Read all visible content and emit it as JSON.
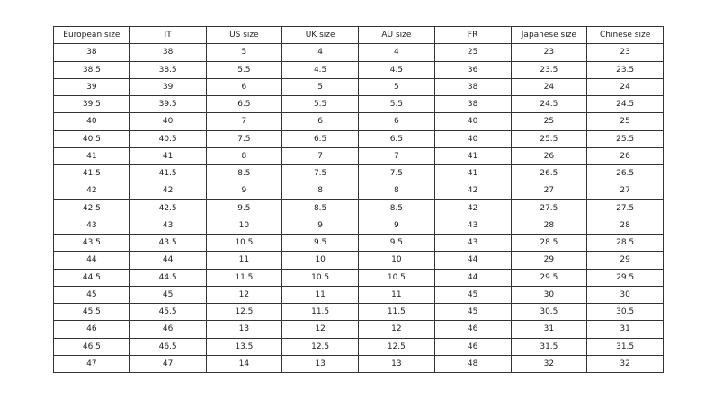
{
  "table": {
    "header": [
      "European size",
      "IT",
      "US size",
      "UK size",
      "AU size",
      "FR",
      "Japanese size",
      "Chinese size"
    ],
    "rows": [
      [
        "38",
        "38",
        "5",
        "4",
        "4",
        "25",
        "23",
        "23"
      ],
      [
        "38.5",
        "38.5",
        "5.5",
        "4.5",
        "4.5",
        "36",
        "23.5",
        "23.5"
      ],
      [
        "39",
        "39",
        "6",
        "5",
        "5",
        "38",
        "24",
        "24"
      ],
      [
        "39.5",
        "39.5",
        "6.5",
        "5.5",
        "5.5",
        "38",
        "24.5",
        "24.5"
      ],
      [
        "40",
        "40",
        "7",
        "6",
        "6",
        "40",
        "25",
        "25"
      ],
      [
        "40.5",
        "40.5",
        "7.5",
        "6.5",
        "6.5",
        "40",
        "25.5",
        "25.5"
      ],
      [
        "41",
        "41",
        "8",
        "7",
        "7",
        "41",
        "26",
        "26"
      ],
      [
        "41.5",
        "41.5",
        "8.5",
        "7.5",
        "7.5",
        "41",
        "26.5",
        "26.5"
      ],
      [
        "42",
        "42",
        "9",
        "8",
        "8",
        "42",
        "27",
        "27"
      ],
      [
        "42.5",
        "42.5",
        "9.5",
        "8.5",
        "8.5",
        "42",
        "27.5",
        "27.5"
      ],
      [
        "43",
        "43",
        "10",
        "9",
        "9",
        "43",
        "28",
        "28"
      ],
      [
        "43.5",
        "43.5",
        "10.5",
        "9.5",
        "9.5",
        "43",
        "28.5",
        "28.5"
      ],
      [
        "44",
        "44",
        "11",
        "10",
        "10",
        "44",
        "29",
        "29"
      ],
      [
        "44.5",
        "44.5",
        "11.5",
        "10.5",
        "10.5",
        "44",
        "29.5",
        "29.5"
      ],
      [
        "45",
        "45",
        "12",
        "11",
        "11",
        "45",
        "30",
        "30"
      ],
      [
        "45.5",
        "45.5",
        "12.5",
        "11.5",
        "11.5",
        "45",
        "30.5",
        "30.5"
      ],
      [
        "46",
        "46",
        "13",
        "12",
        "12",
        "46",
        "31",
        "31"
      ],
      [
        "46.5",
        "46.5",
        "13.5",
        "12.5",
        "12.5",
        "46",
        "31.5",
        "31.5"
      ],
      [
        "47",
        "47",
        "14",
        "13",
        "13",
        "48",
        "32",
        "32"
      ]
    ]
  }
}
